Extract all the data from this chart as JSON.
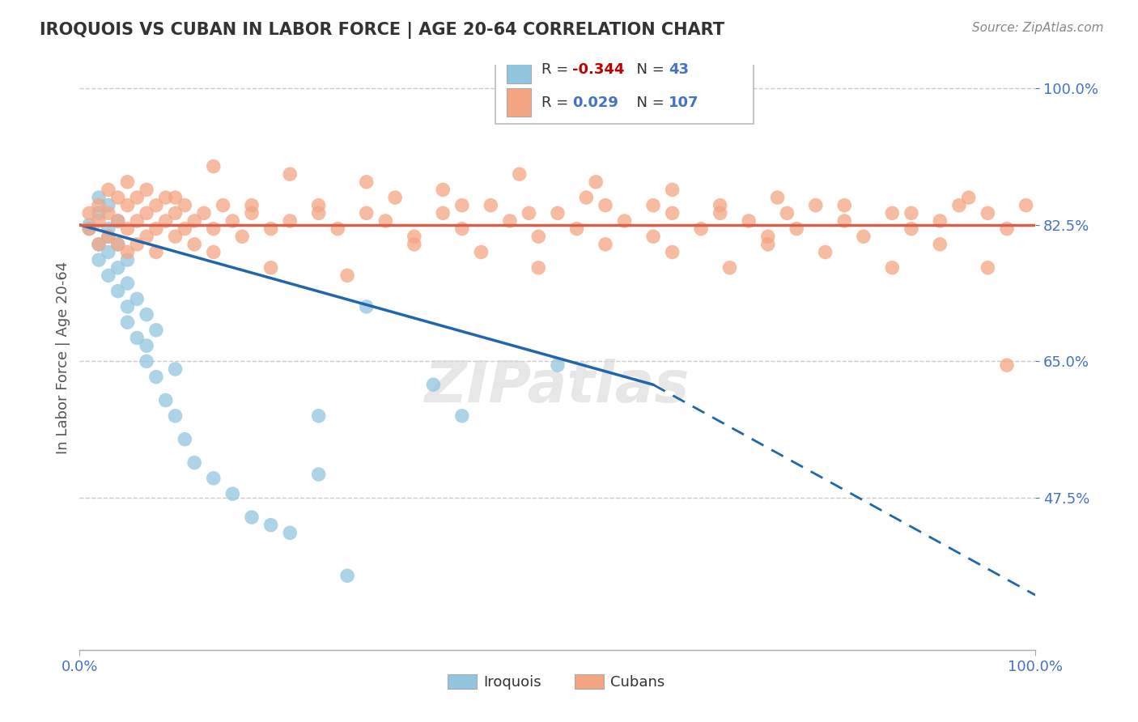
{
  "title": "IROQUOIS VS CUBAN IN LABOR FORCE | AGE 20-64 CORRELATION CHART",
  "source_text": "Source: ZipAtlas.com",
  "ylabel": "In Labor Force | Age 20-64",
  "y_ticks": [
    0.475,
    0.65,
    0.825,
    1.0
  ],
  "y_tick_labels": [
    "47.5%",
    "65.0%",
    "82.5%",
    "100.0%"
  ],
  "x_tick_labels": [
    "0.0%",
    "100.0%"
  ],
  "iroquois_R": -0.344,
  "iroquois_N": 43,
  "cubans_R": 0.029,
  "cubans_N": 107,
  "blue_scatter_color": "#92c5de",
  "pink_scatter_color": "#f4a582",
  "blue_line_color": "#2166ac",
  "pink_line_color": "#d6604d",
  "background_color": "#ffffff",
  "grid_color": "#cccccc",
  "title_fontsize": 15,
  "source_fontsize": 11,
  "tick_fontsize": 13,
  "ylabel_fontsize": 13,
  "watermark_text": "ZIPatlas",
  "watermark_color": "#d8d8d8",
  "legend_text_color": "#4472c4",
  "legend_R_color_blue": "#c00000",
  "legend_R_color_pink": "#c00000",
  "ylim_min": 0.28,
  "ylim_max": 1.03,
  "xlim_min": 0.0,
  "xlim_max": 1.0,
  "blue_trend_x_start": 0.0,
  "blue_trend_y_start": 0.825,
  "blue_trend_x_solid_end": 0.6,
  "blue_trend_y_solid_end": 0.62,
  "blue_trend_x_dashed_end": 1.0,
  "blue_trend_y_dashed_end": 0.35,
  "pink_trend_y": 0.825,
  "iroquois_x": [
    0.01,
    0.01,
    0.02,
    0.02,
    0.02,
    0.02,
    0.03,
    0.03,
    0.03,
    0.03,
    0.03,
    0.04,
    0.04,
    0.04,
    0.04,
    0.05,
    0.05,
    0.05,
    0.05,
    0.06,
    0.06,
    0.07,
    0.07,
    0.07,
    0.08,
    0.08,
    0.09,
    0.1,
    0.1,
    0.11,
    0.12,
    0.14,
    0.16,
    0.18,
    0.2,
    0.22,
    0.25,
    0.3,
    0.37,
    0.4,
    0.5,
    0.25,
    0.28
  ],
  "iroquois_y": [
    0.825,
    0.82,
    0.86,
    0.8,
    0.78,
    0.84,
    0.82,
    0.79,
    0.76,
    0.81,
    0.85,
    0.77,
    0.8,
    0.74,
    0.83,
    0.72,
    0.78,
    0.75,
    0.7,
    0.68,
    0.73,
    0.65,
    0.71,
    0.67,
    0.63,
    0.69,
    0.6,
    0.58,
    0.64,
    0.55,
    0.52,
    0.5,
    0.48,
    0.45,
    0.44,
    0.43,
    0.58,
    0.72,
    0.62,
    0.58,
    0.645,
    0.505,
    0.375
  ],
  "cubans_x": [
    0.01,
    0.01,
    0.02,
    0.02,
    0.02,
    0.03,
    0.03,
    0.03,
    0.04,
    0.04,
    0.04,
    0.05,
    0.05,
    0.05,
    0.05,
    0.06,
    0.06,
    0.06,
    0.07,
    0.07,
    0.07,
    0.08,
    0.08,
    0.08,
    0.09,
    0.09,
    0.1,
    0.1,
    0.11,
    0.11,
    0.12,
    0.12,
    0.13,
    0.14,
    0.15,
    0.16,
    0.17,
    0.18,
    0.2,
    0.22,
    0.25,
    0.27,
    0.3,
    0.32,
    0.35,
    0.38,
    0.4,
    0.43,
    0.45,
    0.48,
    0.5,
    0.52,
    0.55,
    0.57,
    0.6,
    0.62,
    0.65,
    0.67,
    0.7,
    0.72,
    0.74,
    0.75,
    0.77,
    0.8,
    0.82,
    0.85,
    0.87,
    0.9,
    0.92,
    0.95,
    0.97,
    0.99,
    0.14,
    0.2,
    0.28,
    0.35,
    0.42,
    0.48,
    0.55,
    0.62,
    0.68,
    0.72,
    0.78,
    0.85,
    0.9,
    0.95,
    0.1,
    0.18,
    0.25,
    0.33,
    0.4,
    0.47,
    0.53,
    0.6,
    0.67,
    0.73,
    0.8,
    0.87,
    0.93,
    0.14,
    0.22,
    0.3,
    0.38,
    0.46,
    0.54,
    0.62,
    0.97
  ],
  "cubans_y": [
    0.84,
    0.82,
    0.85,
    0.83,
    0.8,
    0.87,
    0.84,
    0.81,
    0.86,
    0.83,
    0.8,
    0.88,
    0.85,
    0.82,
    0.79,
    0.86,
    0.83,
    0.8,
    0.87,
    0.84,
    0.81,
    0.85,
    0.82,
    0.79,
    0.86,
    0.83,
    0.84,
    0.81,
    0.85,
    0.82,
    0.83,
    0.8,
    0.84,
    0.82,
    0.85,
    0.83,
    0.81,
    0.84,
    0.82,
    0.83,
    0.85,
    0.82,
    0.84,
    0.83,
    0.81,
    0.84,
    0.82,
    0.85,
    0.83,
    0.81,
    0.84,
    0.82,
    0.85,
    0.83,
    0.81,
    0.84,
    0.82,
    0.85,
    0.83,
    0.81,
    0.84,
    0.82,
    0.85,
    0.83,
    0.81,
    0.84,
    0.82,
    0.83,
    0.85,
    0.84,
    0.82,
    0.85,
    0.79,
    0.77,
    0.76,
    0.8,
    0.79,
    0.77,
    0.8,
    0.79,
    0.77,
    0.8,
    0.79,
    0.77,
    0.8,
    0.77,
    0.86,
    0.85,
    0.84,
    0.86,
    0.85,
    0.84,
    0.86,
    0.85,
    0.84,
    0.86,
    0.85,
    0.84,
    0.86,
    0.9,
    0.89,
    0.88,
    0.87,
    0.89,
    0.88,
    0.87,
    0.645
  ]
}
